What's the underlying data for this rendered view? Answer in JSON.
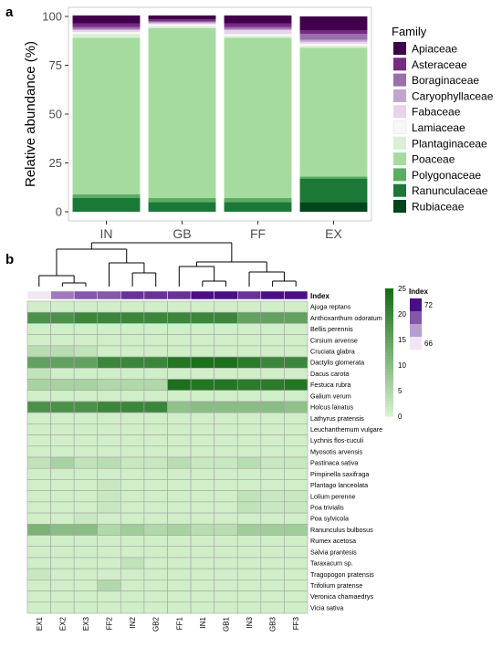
{
  "panel_a_label": "a",
  "panel_b_label": "b",
  "chart_data": [
    {
      "type": "bar",
      "stacked": true,
      "categories": [
        "IN",
        "GB",
        "FF",
        "EX"
      ],
      "ylabel": "Relative abundance (%)",
      "ylim": [
        0,
        100
      ],
      "yticks": [
        0,
        25,
        50,
        75,
        100
      ],
      "legend_title": "Family",
      "legend_position": "right",
      "series": [
        {
          "name": "Rubiaceae",
          "color": "#00441b",
          "values": [
            0,
            0,
            0,
            5
          ]
        },
        {
          "name": "Ranunculaceae",
          "color": "#1b7837",
          "values": [
            7,
            5,
            5,
            12
          ]
        },
        {
          "name": "Polygonaceae",
          "color": "#5aae61",
          "values": [
            2,
            2,
            2,
            1
          ]
        },
        {
          "name": "Poaceae",
          "color": "#a6dba0",
          "values": [
            80,
            87,
            82,
            66
          ]
        },
        {
          "name": "Plantaginaceae",
          "color": "#d9f0d3",
          "values": [
            2,
            1,
            1,
            1
          ]
        },
        {
          "name": "Lamiaceae",
          "color": "#f7f7f7",
          "values": [
            1,
            1,
            1,
            1
          ]
        },
        {
          "name": "Fabaceae",
          "color": "#e7d4e8",
          "values": [
            1,
            0.5,
            2,
            1
          ]
        },
        {
          "name": "Caryophyllaceae",
          "color": "#c2a5cf",
          "values": [
            0.5,
            0.5,
            0.5,
            1
          ]
        },
        {
          "name": "Boraginaceae",
          "color": "#9970ab",
          "values": [
            1,
            0.5,
            1,
            3
          ]
        },
        {
          "name": "Asteraceae",
          "color": "#762a83",
          "values": [
            2,
            1,
            2,
            2
          ]
        },
        {
          "name": "Apiaceae",
          "color": "#40004b",
          "values": [
            4,
            2,
            4,
            7
          ]
        }
      ]
    },
    {
      "type": "heatmap",
      "columns": [
        "EX1",
        "EX2",
        "EX3",
        "FF2",
        "IN2",
        "GB2",
        "FF1",
        "IN1",
        "GB1",
        "IN3",
        "GB3",
        "FF3"
      ],
      "rows": [
        "Ajuga reptans",
        "Anthoxanthum odoratum",
        "Bellis perennis",
        "Cirsium arvense",
        "Cruciata glabra",
        "Dactylis glomerata",
        "Dacus carota",
        "Festuca rubra",
        "Galium verum",
        "Holcus lanatus",
        "Lathyrus pratensis",
        "Leuchanthemum vulgare",
        "Lychnis flos-cuculi",
        "Myosotis arvensis",
        "Pastinaca sativa",
        "Pimpinella saxifraga",
        "Plantago lanceolata",
        "Lolium perenne",
        "Poa trivialis",
        "Poa sylvicola",
        "Ranunculus bulbosus",
        "Rumex acetosa",
        "Salvia prantesis",
        "Taraxacum sp.",
        "Tragopogon pratensis",
        "Trifolium pratense",
        "Veronica chamaedrys",
        "Vicia sativa"
      ],
      "values": [
        [
          1,
          1,
          1,
          1,
          1,
          1,
          1,
          1,
          1,
          1,
          1,
          1
        ],
        [
          18,
          18,
          20,
          20,
          20,
          20,
          20,
          20,
          20,
          15,
          15,
          15
        ],
        [
          1,
          1,
          1,
          1,
          1,
          1,
          1,
          1,
          1,
          1,
          1,
          1
        ],
        [
          1,
          1,
          1,
          1,
          1,
          1,
          1,
          1,
          1,
          1,
          1,
          1
        ],
        [
          4,
          4,
          3,
          1,
          1,
          1,
          1,
          1,
          1,
          1,
          1,
          1
        ],
        [
          15,
          15,
          15,
          20,
          20,
          20,
          23,
          24,
          24,
          22,
          20,
          20
        ],
        [
          3,
          1,
          1,
          1,
          1,
          1,
          1,
          1,
          1,
          1,
          1,
          1
        ],
        [
          6,
          6,
          6,
          5,
          5,
          5,
          24,
          23,
          23,
          22,
          22,
          23
        ],
        [
          1,
          1,
          1,
          1,
          1,
          1,
          1,
          1,
          1,
          1,
          1,
          1
        ],
        [
          18,
          18,
          18,
          20,
          20,
          20,
          9,
          10,
          10,
          10,
          10,
          9
        ],
        [
          1,
          1,
          1,
          1,
          1,
          1,
          1,
          1,
          1,
          1,
          1,
          1
        ],
        [
          1,
          1,
          1,
          1,
          1,
          1,
          1,
          1,
          1,
          1,
          1,
          1
        ],
        [
          1,
          1,
          1,
          1,
          1,
          1,
          1,
          1,
          1,
          1,
          1,
          1
        ],
        [
          1,
          1,
          1,
          1,
          1,
          1,
          1,
          1,
          1,
          1,
          1,
          1
        ],
        [
          3,
          6,
          3,
          4,
          2,
          2,
          4,
          2,
          2,
          4,
          2,
          2
        ],
        [
          1,
          1,
          1,
          1,
          1,
          1,
          1,
          1,
          1,
          1,
          1,
          1
        ],
        [
          1,
          1,
          1,
          2,
          1,
          1,
          1,
          1,
          1,
          1,
          1,
          1
        ],
        [
          1,
          1,
          1,
          2,
          1,
          1,
          1,
          1,
          1,
          3,
          2,
          2
        ],
        [
          1,
          1,
          1,
          2,
          1,
          1,
          1,
          1,
          1,
          3,
          2,
          2
        ],
        [
          1,
          1,
          2,
          1,
          1,
          1,
          1,
          1,
          1,
          1,
          1,
          1
        ],
        [
          12,
          10,
          10,
          5,
          7,
          5,
          6,
          4,
          4,
          7,
          7,
          7
        ],
        [
          1,
          1,
          1,
          1,
          1,
          1,
          1,
          1,
          1,
          1,
          1,
          1
        ],
        [
          1,
          1,
          1,
          1,
          1,
          1,
          1,
          1,
          1,
          1,
          1,
          1
        ],
        [
          1,
          1,
          1,
          1,
          3,
          1,
          1,
          1,
          1,
          1,
          1,
          1
        ],
        [
          2,
          1,
          1,
          1,
          1,
          1,
          1,
          1,
          1,
          1,
          1,
          1
        ],
        [
          1,
          1,
          1,
          5,
          1,
          1,
          1,
          1,
          1,
          1,
          1,
          1
        ],
        [
          1,
          1,
          1,
          1,
          1,
          1,
          1,
          1,
          1,
          1,
          1,
          1
        ],
        [
          1,
          1,
          1,
          1,
          1,
          1,
          1,
          1,
          1,
          1,
          1,
          1
        ]
      ],
      "color_scale": {
        "min": 0,
        "max": 25,
        "low_color": "#d8f3d0",
        "high_color": "#146b14",
        "ticks": [
          0,
          5,
          10,
          15,
          20,
          25
        ]
      },
      "index_annotation": {
        "title": "Index",
        "values": [
          66,
          69,
          70,
          70,
          71,
          71,
          71,
          72,
          72,
          71,
          72,
          72
        ],
        "scale_min": 66,
        "scale_max": 72,
        "ticks": [
          72,
          66
        ],
        "low_color": "#f2e6f5",
        "high_color": "#4b0f85"
      }
    }
  ]
}
